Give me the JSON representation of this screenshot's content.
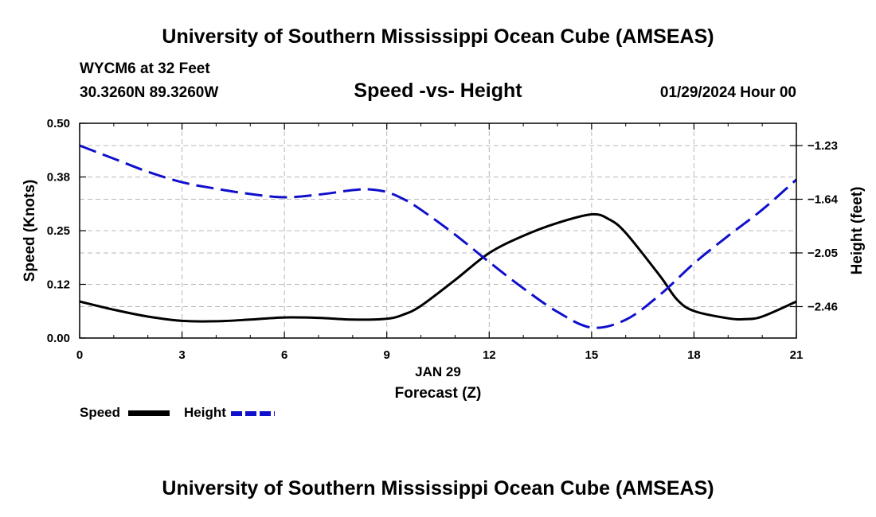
{
  "header": {
    "title": "University of Southern Mississippi Ocean Cube (AMSEAS)",
    "station": "WYCM6 at 32 Feet",
    "coordinates": "30.3260N  89.3260W",
    "datetime": "01/29/2024 Hour 00"
  },
  "footer": {
    "title": "University of Southern Mississippi Ocean Cube (AMSEAS)"
  },
  "chart_data": {
    "type": "line",
    "title": "Speed -vs- Height",
    "xlabel_date": "JAN 29",
    "xlabel": "Forecast (Z)",
    "ylabel": "Speed (Knots)",
    "y2label": "Height (feet)",
    "xlim": [
      0,
      21
    ],
    "ylim": [
      0,
      0.5
    ],
    "y2lim": [
      -2.7,
      -1.06
    ],
    "xticks": [
      0,
      3,
      6,
      9,
      12,
      15,
      18,
      21
    ],
    "yticks": [
      0.0,
      0.125,
      0.25,
      0.375,
      0.5
    ],
    "ytick_labels": [
      "0.00",
      "0.12",
      "0.25",
      "0.38",
      "0.50"
    ],
    "y2ticks": [
      -2.46,
      -2.05,
      -1.64,
      -1.23
    ],
    "y2tick_labels": [
      "−2.46",
      "−2.05",
      "−1.64",
      "−1.23"
    ],
    "grid": true,
    "colors": {
      "speed": "#000000",
      "height": "#1010cc",
      "grid": "#b8b8b8"
    },
    "series": [
      {
        "name": "Speed",
        "axis": "left",
        "style": "solid",
        "x": [
          0,
          1,
          2,
          3,
          4,
          5,
          6,
          7,
          8,
          9,
          9.5,
          10,
          11,
          12,
          13,
          14,
          15,
          15.5,
          16,
          17,
          17.5,
          18,
          19,
          19.5,
          20,
          21
        ],
        "values": [
          0.085,
          0.066,
          0.05,
          0.04,
          0.039,
          0.043,
          0.048,
          0.047,
          0.043,
          0.045,
          0.055,
          0.075,
          0.135,
          0.198,
          0.238,
          0.268,
          0.288,
          0.277,
          0.245,
          0.145,
          0.09,
          0.063,
          0.046,
          0.044,
          0.05,
          0.085
        ]
      },
      {
        "name": "Height",
        "axis": "right",
        "style": "dashed",
        "x": [
          0,
          1,
          2,
          3,
          4,
          5,
          6,
          7,
          8,
          8.5,
          9,
          9.5,
          10,
          11,
          12,
          13,
          14,
          15,
          16,
          17,
          18,
          19,
          20,
          21
        ],
        "values": [
          -1.23,
          -1.33,
          -1.43,
          -1.51,
          -1.56,
          -1.6,
          -1.625,
          -1.605,
          -1.57,
          -1.565,
          -1.585,
          -1.64,
          -1.72,
          -1.91,
          -2.12,
          -2.32,
          -2.5,
          -2.62,
          -2.56,
          -2.37,
          -2.13,
          -1.92,
          -1.72,
          -1.49
        ]
      }
    ],
    "legend": [
      {
        "label": "Speed",
        "series": "Speed"
      },
      {
        "label": "Height",
        "series": "Height"
      }
    ]
  }
}
